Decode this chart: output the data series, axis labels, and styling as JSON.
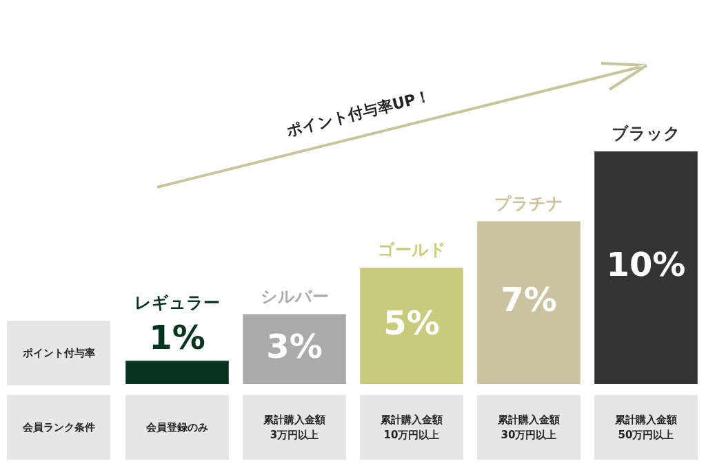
{
  "chart_data": {
    "type": "bar",
    "categories": [
      "レギュラー",
      "シルバー",
      "ゴールド",
      "プラチナ",
      "ブラック"
    ],
    "values": [
      1,
      3,
      5,
      7,
      10
    ],
    "colors": [
      "#06341c",
      "#aaaaaa",
      "#c9cb7c",
      "#cbc29f",
      "#343434"
    ],
    "value_labels": [
      "1%",
      "3%",
      "5%",
      "7%",
      "10%"
    ],
    "ylabel": "ポイント付与率",
    "annotations": [
      "ポイント付与率UP！",
      "会員ランク条件",
      "会員登録のみ",
      "累計購入金額\n3万円以上",
      "累計購入金額\n10万円以上",
      "累計購入金額\n30万円以上",
      "累計購入金額\n50万円以上"
    ],
    "tick_labels": "x",
    "legend": false
  }
}
